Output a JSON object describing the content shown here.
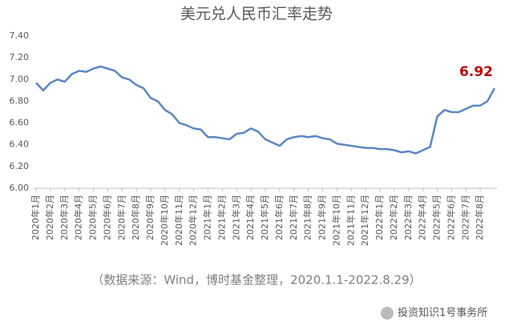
{
  "chart_data": {
    "type": "line",
    "title": "美元兑人民币汇率走势",
    "note": "（数据来源：Wind，博时基金整理，2020.1.1-2022.8.29）",
    "watermark": "投资知识1号事务所",
    "categories": [
      "2020年1月",
      null,
      "2020年2月",
      null,
      "2020年3月",
      null,
      "2020年4月",
      null,
      "2020年5月",
      null,
      "2020年6月",
      null,
      "2020年7月",
      null,
      "2020年8月",
      null,
      "2020年9月",
      null,
      "2020年10月",
      null,
      "2020年11月",
      null,
      "2020年12月",
      null,
      "2021年1月",
      null,
      "2021年2月",
      null,
      "2021年3月",
      null,
      "2021年4月",
      null,
      "2021年5月",
      null,
      "2021年6月",
      null,
      "2021年7月",
      null,
      "2021年8月",
      null,
      "2021年9月",
      null,
      "2021年10月",
      null,
      "2021年11月",
      null,
      "2021年12月",
      null,
      "2022年1月",
      null,
      "2022年2月",
      null,
      "2022年3月",
      null,
      "2022年4月",
      null,
      "2022年5月",
      null,
      "2022年6月",
      null,
      "2022年7月",
      null,
      "2022年8月",
      null,
      null
    ],
    "values": [
      6.97,
      6.9,
      6.97,
      7.0,
      6.98,
      7.05,
      7.08,
      7.07,
      7.1,
      7.12,
      7.1,
      7.08,
      7.02,
      7.0,
      6.95,
      6.92,
      6.83,
      6.8,
      6.72,
      6.68,
      6.6,
      6.58,
      6.55,
      6.54,
      6.47,
      6.47,
      6.46,
      6.45,
      6.5,
      6.51,
      6.55,
      6.52,
      6.45,
      6.42,
      6.39,
      6.45,
      6.47,
      6.48,
      6.47,
      6.48,
      6.46,
      6.45,
      6.41,
      6.4,
      6.39,
      6.38,
      6.37,
      6.37,
      6.36,
      6.36,
      6.35,
      6.33,
      6.34,
      6.32,
      6.35,
      6.38,
      6.66,
      6.72,
      6.7,
      6.7,
      6.73,
      6.76,
      6.76,
      6.8,
      6.92
    ],
    "color": "#5b87c5",
    "ylim": [
      6.0,
      7.4
    ],
    "yticks": [
      {
        "value": 6.0,
        "label": "6.00"
      },
      {
        "value": 6.2,
        "label": "6.20"
      },
      {
        "value": 6.4,
        "label": "6.40"
      },
      {
        "value": 6.6,
        "label": "6.60"
      },
      {
        "value": 6.8,
        "label": "6.80"
      },
      {
        "value": 7.0,
        "label": "7.00"
      },
      {
        "value": 7.2,
        "label": "7.20"
      },
      {
        "value": 7.4,
        "label": "7.40"
      }
    ],
    "grid": false
  }
}
